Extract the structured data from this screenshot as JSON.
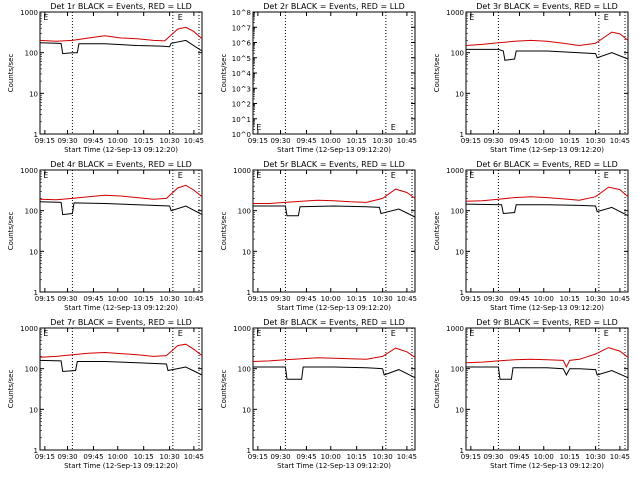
{
  "chart_data": [
    {
      "type": "line",
      "title": "Det 1r BLACK = Events, RED = LLD",
      "xlabel": "Start Time (12-Sep-13 09:12:20)",
      "ylabel": "Counts/sec",
      "yscale": "log",
      "ylim": [
        1,
        1000
      ],
      "ytick_labels": [
        "1000",
        "100",
        "10",
        "1"
      ],
      "xtick_labels": [
        "09:15",
        "09:30",
        "09:45",
        "10:00",
        "10:15",
        "10:30",
        "10:45"
      ],
      "marker_labels": [
        "E",
        "E"
      ],
      "series": [
        {
          "color": "#000000",
          "points": [
            [
              0,
              175
            ],
            [
              0.1,
              170
            ],
            [
              0.13,
              168
            ],
            [
              0.14,
              95
            ],
            [
              0.2,
              100
            ],
            [
              0.23,
              100
            ],
            [
              0.24,
              165
            ],
            [
              0.4,
              165
            ],
            [
              0.6,
              150
            ],
            [
              0.75,
              145
            ],
            [
              0.8,
              140
            ],
            [
              0.81,
              170
            ],
            [
              0.9,
              200
            ],
            [
              1,
              110
            ]
          ]
        },
        {
          "color": "#d00000",
          "points": [
            [
              0,
              200
            ],
            [
              0.1,
              190
            ],
            [
              0.2,
              200
            ],
            [
              0.3,
              230
            ],
            [
              0.4,
              260
            ],
            [
              0.5,
              230
            ],
            [
              0.6,
              220
            ],
            [
              0.7,
              200
            ],
            [
              0.77,
              195
            ],
            [
              0.85,
              380
            ],
            [
              0.9,
              420
            ],
            [
              0.95,
              330
            ],
            [
              1,
              220
            ]
          ]
        }
      ]
    },
    {
      "type": "line",
      "title": "Det 2r BLACK = Events, RED = LLD",
      "xlabel": "Start Time (12-Sep-13 09:12:20)",
      "ylabel": "Counts/sec",
      "yscale": "log",
      "ylim": [
        1,
        100000000
      ],
      "ytick_labels": [
        "10^8",
        "10^7",
        "10^6",
        "10^5",
        "10^4",
        "10^3",
        "10^2",
        "10^1",
        "10^0"
      ],
      "xtick_labels": [
        "09:15",
        "09:30",
        "09:45",
        "10:00",
        "10:15",
        "10:30",
        "10:45"
      ],
      "marker_labels": [
        "E",
        "E"
      ],
      "series": []
    },
    {
      "type": "line",
      "title": "Det 3r BLACK = Events, RED = LLD",
      "xlabel": "Start Time (12-Sep-13 09:12:20)",
      "ylabel": "Counts/sec",
      "yscale": "log",
      "ylim": [
        1,
        1000
      ],
      "ytick_labels": [
        "1000",
        "100",
        "10",
        "1"
      ],
      "xtick_labels": [
        "09:15",
        "09:30",
        "09:45",
        "10:00",
        "10:15",
        "10:30",
        "10:45"
      ],
      "marker_labels": [
        "E",
        "E"
      ],
      "series": [
        {
          "color": "#000000",
          "points": [
            [
              0,
              120
            ],
            [
              0.2,
              120
            ],
            [
              0.23,
              110
            ],
            [
              0.24,
              65
            ],
            [
              0.3,
              70
            ],
            [
              0.31,
              110
            ],
            [
              0.5,
              110
            ],
            [
              0.7,
              100
            ],
            [
              0.8,
              95
            ],
            [
              0.81,
              75
            ],
            [
              0.9,
              100
            ],
            [
              1,
              70
            ]
          ]
        },
        {
          "color": "#d00000",
          "points": [
            [
              0,
              150
            ],
            [
              0.1,
              160
            ],
            [
              0.2,
              175
            ],
            [
              0.3,
              190
            ],
            [
              0.4,
              200
            ],
            [
              0.5,
              190
            ],
            [
              0.6,
              170
            ],
            [
              0.7,
              150
            ],
            [
              0.8,
              170
            ],
            [
              0.9,
              320
            ],
            [
              0.95,
              290
            ],
            [
              1,
              200
            ]
          ]
        }
      ]
    },
    {
      "type": "line",
      "title": "Det 4r BLACK = Events, RED = LLD",
      "xlabel": "Start Time (12-Sep-13 09:12:20)",
      "ylabel": "Counts/sec",
      "yscale": "log",
      "ylim": [
        1,
        1000
      ],
      "ytick_labels": [
        "1000",
        "100",
        "10",
        "1"
      ],
      "xtick_labels": [
        "09:15",
        "09:30",
        "09:45",
        "10:00",
        "10:15",
        "10:30",
        "10:45"
      ],
      "marker_labels": [
        "E",
        "E"
      ],
      "series": [
        {
          "color": "#000000",
          "points": [
            [
              0,
              165
            ],
            [
              0.13,
              160
            ],
            [
              0.14,
              80
            ],
            [
              0.2,
              85
            ],
            [
              0.21,
              155
            ],
            [
              0.4,
              150
            ],
            [
              0.6,
              140
            ],
            [
              0.8,
              130
            ],
            [
              0.81,
              100
            ],
            [
              0.9,
              130
            ],
            [
              1,
              80
            ]
          ]
        },
        {
          "color": "#d00000",
          "points": [
            [
              0,
              190
            ],
            [
              0.1,
              185
            ],
            [
              0.2,
              200
            ],
            [
              0.3,
              220
            ],
            [
              0.4,
              240
            ],
            [
              0.5,
              230
            ],
            [
              0.6,
              210
            ],
            [
              0.7,
              190
            ],
            [
              0.78,
              200
            ],
            [
              0.85,
              360
            ],
            [
              0.9,
              420
            ],
            [
              0.95,
              320
            ],
            [
              1,
              220
            ]
          ]
        }
      ]
    },
    {
      "type": "line",
      "title": "Det 5r BLACK = Events, RED = LLD",
      "xlabel": "Start Time (12-Sep-13 09:12:20)",
      "ylabel": "Counts/sec",
      "yscale": "log",
      "ylim": [
        1,
        1000
      ],
      "ytick_labels": [
        "1000",
        "100",
        "10",
        "1"
      ],
      "xtick_labels": [
        "09:15",
        "09:30",
        "09:45",
        "10:00",
        "10:15",
        "10:30",
        "10:45"
      ],
      "marker_labels": [
        "E",
        "E"
      ],
      "series": [
        {
          "color": "#000000",
          "points": [
            [
              0,
              130
            ],
            [
              0.2,
              130
            ],
            [
              0.21,
              75
            ],
            [
              0.28,
              75
            ],
            [
              0.29,
              125
            ],
            [
              0.5,
              130
            ],
            [
              0.7,
              125
            ],
            [
              0.78,
              120
            ],
            [
              0.79,
              85
            ],
            [
              0.9,
              110
            ],
            [
              1,
              70
            ]
          ]
        },
        {
          "color": "#d00000",
          "points": [
            [
              0,
              150
            ],
            [
              0.1,
              150
            ],
            [
              0.2,
              160
            ],
            [
              0.3,
              170
            ],
            [
              0.4,
              180
            ],
            [
              0.5,
              175
            ],
            [
              0.6,
              165
            ],
            [
              0.7,
              160
            ],
            [
              0.8,
              200
            ],
            [
              0.88,
              340
            ],
            [
              0.95,
              280
            ],
            [
              1,
              200
            ]
          ]
        }
      ]
    },
    {
      "type": "line",
      "title": "Det 6r BLACK = Events, RED = LLD",
      "xlabel": "Start Time (12-Sep-13 09:12:20)",
      "ylabel": "Counts/sec",
      "yscale": "log",
      "ylim": [
        1,
        1000
      ],
      "ytick_labels": [
        "1000",
        "100",
        "10",
        "1"
      ],
      "xtick_labels": [
        "09:15",
        "09:30",
        "09:45",
        "10:00",
        "10:15",
        "10:30",
        "10:45"
      ],
      "marker_labels": [
        "E",
        "E"
      ],
      "series": [
        {
          "color": "#000000",
          "points": [
            [
              0,
              145
            ],
            [
              0.22,
              140
            ],
            [
              0.23,
              85
            ],
            [
              0.3,
              90
            ],
            [
              0.31,
              140
            ],
            [
              0.5,
              140
            ],
            [
              0.7,
              135
            ],
            [
              0.8,
              130
            ],
            [
              0.81,
              95
            ],
            [
              0.9,
              120
            ],
            [
              1,
              75
            ]
          ]
        },
        {
          "color": "#d00000",
          "points": [
            [
              0,
              170
            ],
            [
              0.1,
              175
            ],
            [
              0.2,
              190
            ],
            [
              0.3,
              210
            ],
            [
              0.4,
              220
            ],
            [
              0.5,
              210
            ],
            [
              0.6,
              195
            ],
            [
              0.7,
              180
            ],
            [
              0.8,
              220
            ],
            [
              0.88,
              380
            ],
            [
              0.95,
              330
            ],
            [
              1,
              220
            ]
          ]
        }
      ]
    },
    {
      "type": "line",
      "title": "Det 7r BLACK = Events, RED = LLD",
      "xlabel": "Start Time (12-Sep-13 09:12:20)",
      "ylabel": "Counts/sec",
      "yscale": "log",
      "ylim": [
        1,
        1000
      ],
      "ytick_labels": [
        "1000",
        "100",
        "10",
        "1"
      ],
      "xtick_labels": [
        "09:15",
        "09:30",
        "09:45",
        "10:00",
        "10:15",
        "10:30",
        "10:45"
      ],
      "marker_labels": [
        "E",
        "E"
      ],
      "series": [
        {
          "color": "#000000",
          "points": [
            [
              0,
              160
            ],
            [
              0.13,
              155
            ],
            [
              0.14,
              85
            ],
            [
              0.22,
              90
            ],
            [
              0.23,
              150
            ],
            [
              0.4,
              150
            ],
            [
              0.6,
              140
            ],
            [
              0.78,
              130
            ],
            [
              0.79,
              90
            ],
            [
              0.9,
              110
            ],
            [
              1,
              70
            ]
          ]
        },
        {
          "color": "#d00000",
          "points": [
            [
              0,
              190
            ],
            [
              0.1,
              200
            ],
            [
              0.2,
              220
            ],
            [
              0.3,
              240
            ],
            [
              0.4,
              250
            ],
            [
              0.5,
              235
            ],
            [
              0.6,
              220
            ],
            [
              0.7,
              200
            ],
            [
              0.78,
              210
            ],
            [
              0.85,
              370
            ],
            [
              0.9,
              400
            ],
            [
              0.95,
              300
            ],
            [
              1,
              210
            ]
          ]
        }
      ]
    },
    {
      "type": "line",
      "title": "Det 8r BLACK = Events, RED = LLD",
      "xlabel": "Start Time (12-Sep-13 09:12:20)",
      "ylabel": "Counts/sec",
      "yscale": "log",
      "ylim": [
        1,
        1000
      ],
      "ytick_labels": [
        "1000",
        "100",
        "10",
        "1"
      ],
      "xtick_labels": [
        "09:15",
        "09:30",
        "09:45",
        "10:00",
        "10:15",
        "10:30",
        "10:45"
      ],
      "marker_labels": [
        "E",
        "E"
      ],
      "series": [
        {
          "color": "#000000",
          "points": [
            [
              0,
              110
            ],
            [
              0.2,
              110
            ],
            [
              0.21,
              55
            ],
            [
              0.3,
              55
            ],
            [
              0.31,
              110
            ],
            [
              0.5,
              110
            ],
            [
              0.7,
              105
            ],
            [
              0.8,
              100
            ],
            [
              0.81,
              70
            ],
            [
              0.9,
              95
            ],
            [
              1,
              60
            ]
          ]
        },
        {
          "color": "#d00000",
          "points": [
            [
              0,
              150
            ],
            [
              0.1,
              155
            ],
            [
              0.2,
              165
            ],
            [
              0.3,
              175
            ],
            [
              0.4,
              185
            ],
            [
              0.5,
              180
            ],
            [
              0.6,
              175
            ],
            [
              0.7,
              170
            ],
            [
              0.8,
              200
            ],
            [
              0.88,
              320
            ],
            [
              0.95,
              260
            ],
            [
              1,
              190
            ]
          ]
        }
      ]
    },
    {
      "type": "line",
      "title": "Det 9r BLACK = Events, RED = LLD",
      "xlabel": "Start Time (12-Sep-13 09:12:20)",
      "ylabel": "Counts/sec",
      "yscale": "log",
      "ylim": [
        1,
        1000
      ],
      "ytick_labels": [
        "1000",
        "100",
        "10",
        "1"
      ],
      "xtick_labels": [
        "09:15",
        "09:30",
        "09:45",
        "10:00",
        "10:15",
        "10:30",
        "10:45"
      ],
      "marker_labels": [
        "E",
        "E"
      ],
      "series": [
        {
          "color": "#000000",
          "points": [
            [
              0,
              110
            ],
            [
              0.2,
              110
            ],
            [
              0.21,
              55
            ],
            [
              0.28,
              55
            ],
            [
              0.29,
              105
            ],
            [
              0.5,
              105
            ],
            [
              0.6,
              100
            ],
            [
              0.62,
              70
            ],
            [
              0.64,
              100
            ],
            [
              0.7,
              100
            ],
            [
              0.8,
              95
            ],
            [
              0.81,
              70
            ],
            [
              0.9,
              90
            ],
            [
              1,
              60
            ]
          ]
        },
        {
          "color": "#d00000",
          "points": [
            [
              0,
              140
            ],
            [
              0.1,
              145
            ],
            [
              0.2,
              155
            ],
            [
              0.3,
              165
            ],
            [
              0.4,
              170
            ],
            [
              0.5,
              165
            ],
            [
              0.6,
              160
            ],
            [
              0.62,
              110
            ],
            [
              0.64,
              160
            ],
            [
              0.7,
              170
            ],
            [
              0.8,
              230
            ],
            [
              0.88,
              330
            ],
            [
              0.95,
              270
            ],
            [
              1,
              190
            ]
          ]
        }
      ]
    }
  ]
}
